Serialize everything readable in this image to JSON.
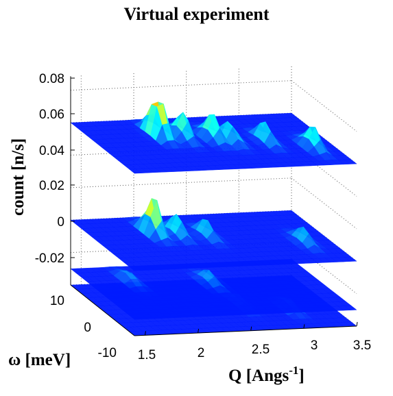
{
  "title": "Virtual experiment",
  "chart_data": {
    "type": "surface",
    "title": "Virtual experiment",
    "xlabel": "Q [Angs",
    "xlabel_sup": "-1",
    "xlabel_close": "]",
    "ylabel": "ω [meV]",
    "zlabel": "count [n/s]",
    "x_ticks": [
      "1.5",
      "2",
      "2.5",
      "3",
      "3.5"
    ],
    "y_ticks": [
      "10",
      "0",
      "-10"
    ],
    "z_ticks": [
      "0.08",
      "0.06",
      "0.04",
      "0.02",
      "0",
      "-0.02"
    ],
    "xlim": [
      1.4,
      3.5
    ],
    "ylim": [
      -10,
      10
    ],
    "zlim": [
      -0.04,
      0.09
    ],
    "series": [
      {
        "offset": 0.06,
        "peaks": [
          {
            "q": 2.05,
            "w": 4,
            "h": 0.03
          },
          {
            "q": 2.25,
            "w": 3,
            "h": 0.016
          },
          {
            "q": 2.5,
            "w": 2,
            "h": 0.016
          },
          {
            "q": 2.65,
            "w": 1,
            "h": 0.012
          },
          {
            "q": 2.95,
            "w": 0,
            "h": 0.012
          },
          {
            "q": 3.3,
            "w": -3,
            "h": 0.014
          }
        ]
      },
      {
        "offset": 0.0,
        "peaks": [
          {
            "q": 2.0,
            "w": 4,
            "h": 0.025
          },
          {
            "q": 2.2,
            "w": 3,
            "h": 0.012
          },
          {
            "q": 2.45,
            "w": 2,
            "h": 0.01
          },
          {
            "q": 3.25,
            "w": -2,
            "h": 0.009
          }
        ]
      },
      {
        "offset": -0.03,
        "peaks": [
          {
            "q": 1.8,
            "w": 5,
            "h": 0.006
          },
          {
            "q": 2.5,
            "w": 3,
            "h": 0.007
          }
        ]
      },
      {
        "offset": -0.04,
        "peaks": [
          {
            "q": 2.7,
            "w": 0,
            "h": 0.006
          },
          {
            "q": 3.1,
            "w": -2,
            "h": 0.007
          }
        ]
      }
    ]
  }
}
